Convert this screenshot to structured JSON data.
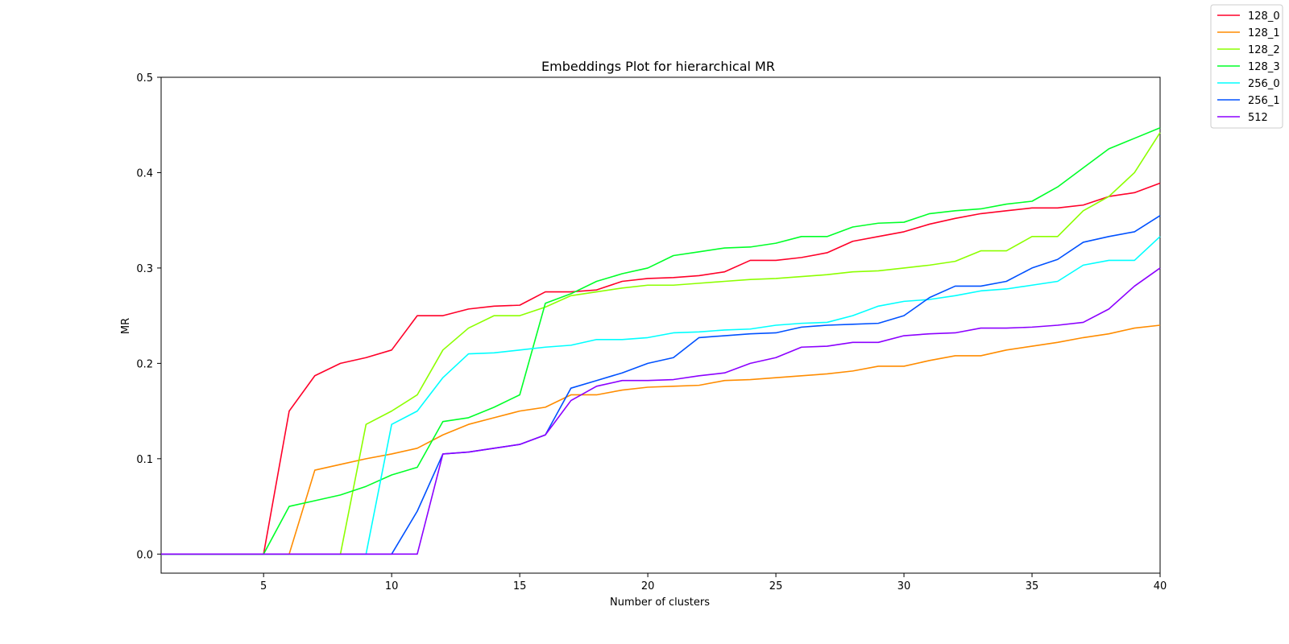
{
  "chart_data": {
    "type": "line",
    "title": "Embeddings Plot for hierarchical MR",
    "xlabel": "Number of clusters",
    "ylabel": "MR",
    "xlim": [
      1,
      40
    ],
    "ylim": [
      -0.02,
      0.5
    ],
    "xticks": [
      5,
      10,
      15,
      20,
      25,
      30,
      35,
      40
    ],
    "yticks": [
      0.0,
      0.1,
      0.2,
      0.3,
      0.4,
      0.5
    ],
    "ytick_labels": [
      "0.0",
      "0.1",
      "0.2",
      "0.3",
      "0.4",
      "0.5"
    ],
    "grid": false,
    "legend_position": "top-right, outside plot",
    "x": [
      1,
      2,
      3,
      4,
      5,
      6,
      7,
      8,
      9,
      10,
      11,
      12,
      13,
      14,
      15,
      16,
      17,
      18,
      19,
      20,
      21,
      22,
      23,
      24,
      25,
      26,
      27,
      28,
      29,
      30,
      31,
      32,
      33,
      34,
      35,
      36,
      37,
      38,
      39,
      40
    ],
    "series": [
      {
        "name": "128_0",
        "color": "#ff0029",
        "values": [
          0,
          0,
          0,
          0,
          0,
          0.15,
          0.187,
          0.2,
          0.206,
          0.214,
          0.25,
          0.25,
          0.257,
          0.26,
          0.261,
          0.275,
          0.275,
          0.277,
          0.286,
          0.289,
          0.29,
          0.292,
          0.296,
          0.308,
          0.308,
          0.311,
          0.316,
          0.328,
          0.333,
          0.338,
          0.346,
          0.352,
          0.357,
          0.36,
          0.363,
          0.363,
          0.366,
          0.375,
          0.379,
          0.389
        ]
      },
      {
        "name": "128_1",
        "color": "#ff8c00",
        "values": [
          0,
          0,
          0,
          0,
          0,
          0,
          0.088,
          0.094,
          0.1,
          0.105,
          0.111,
          0.125,
          0.136,
          0.143,
          0.15,
          0.154,
          0.167,
          0.167,
          0.172,
          0.175,
          0.176,
          0.177,
          0.182,
          0.183,
          0.185,
          0.187,
          0.189,
          0.192,
          0.197,
          0.197,
          0.203,
          0.208,
          0.208,
          0.214,
          0.218,
          0.222,
          0.227,
          0.231,
          0.237,
          0.24
        ]
      },
      {
        "name": "128_2",
        "color": "#8cff00",
        "values": [
          0,
          0,
          0,
          0,
          0,
          0,
          0,
          0,
          0.136,
          0.15,
          0.167,
          0.214,
          0.237,
          0.25,
          0.25,
          0.259,
          0.271,
          0.275,
          0.279,
          0.282,
          0.282,
          0.284,
          0.286,
          0.288,
          0.289,
          0.291,
          0.293,
          0.296,
          0.297,
          0.3,
          0.303,
          0.307,
          0.318,
          0.318,
          0.333,
          0.333,
          0.36,
          0.375,
          0.4,
          0.442
        ]
      },
      {
        "name": "128_3",
        "color": "#00ff29",
        "values": [
          0,
          0,
          0,
          0,
          0,
          0.05,
          0.056,
          0.062,
          0.071,
          0.083,
          0.091,
          0.139,
          0.143,
          0.154,
          0.167,
          0.263,
          0.273,
          0.286,
          0.294,
          0.3,
          0.313,
          0.317,
          0.321,
          0.322,
          0.326,
          0.333,
          0.333,
          0.343,
          0.347,
          0.348,
          0.357,
          0.36,
          0.362,
          0.367,
          0.37,
          0.385,
          0.405,
          0.425,
          0.436,
          0.447
        ]
      },
      {
        "name": "256_0",
        "color": "#00ffff",
        "values": [
          0,
          0,
          0,
          0,
          0,
          0,
          0,
          0,
          0,
          0.136,
          0.15,
          0.185,
          0.21,
          0.211,
          0.214,
          0.217,
          0.219,
          0.225,
          0.225,
          0.227,
          0.232,
          0.233,
          0.235,
          0.236,
          0.24,
          0.242,
          0.243,
          0.25,
          0.26,
          0.265,
          0.267,
          0.271,
          0.276,
          0.278,
          0.282,
          0.286,
          0.303,
          0.308,
          0.308,
          0.333
        ]
      },
      {
        "name": "256_1",
        "color": "#0051ff",
        "values": [
          0,
          0,
          0,
          0,
          0,
          0,
          0,
          0,
          0,
          0,
          0.045,
          0.105,
          0.107,
          0.111,
          0.115,
          0.125,
          0.174,
          0.182,
          0.19,
          0.2,
          0.206,
          0.227,
          0.229,
          0.231,
          0.232,
          0.238,
          0.24,
          0.241,
          0.242,
          0.25,
          0.269,
          0.281,
          0.281,
          0.286,
          0.3,
          0.309,
          0.327,
          0.333,
          0.338,
          0.355
        ]
      },
      {
        "name": "512",
        "color": "#8c00ff",
        "values": [
          0,
          0,
          0,
          0,
          0,
          0,
          0,
          0,
          0,
          0,
          0,
          0.105,
          0.107,
          0.111,
          0.115,
          0.125,
          0.161,
          0.176,
          0.182,
          0.182,
          0.183,
          0.187,
          0.19,
          0.2,
          0.206,
          0.217,
          0.218,
          0.222,
          0.222,
          0.229,
          0.231,
          0.232,
          0.237,
          0.237,
          0.238,
          0.24,
          0.243,
          0.257,
          0.281,
          0.3
        ]
      }
    ]
  }
}
